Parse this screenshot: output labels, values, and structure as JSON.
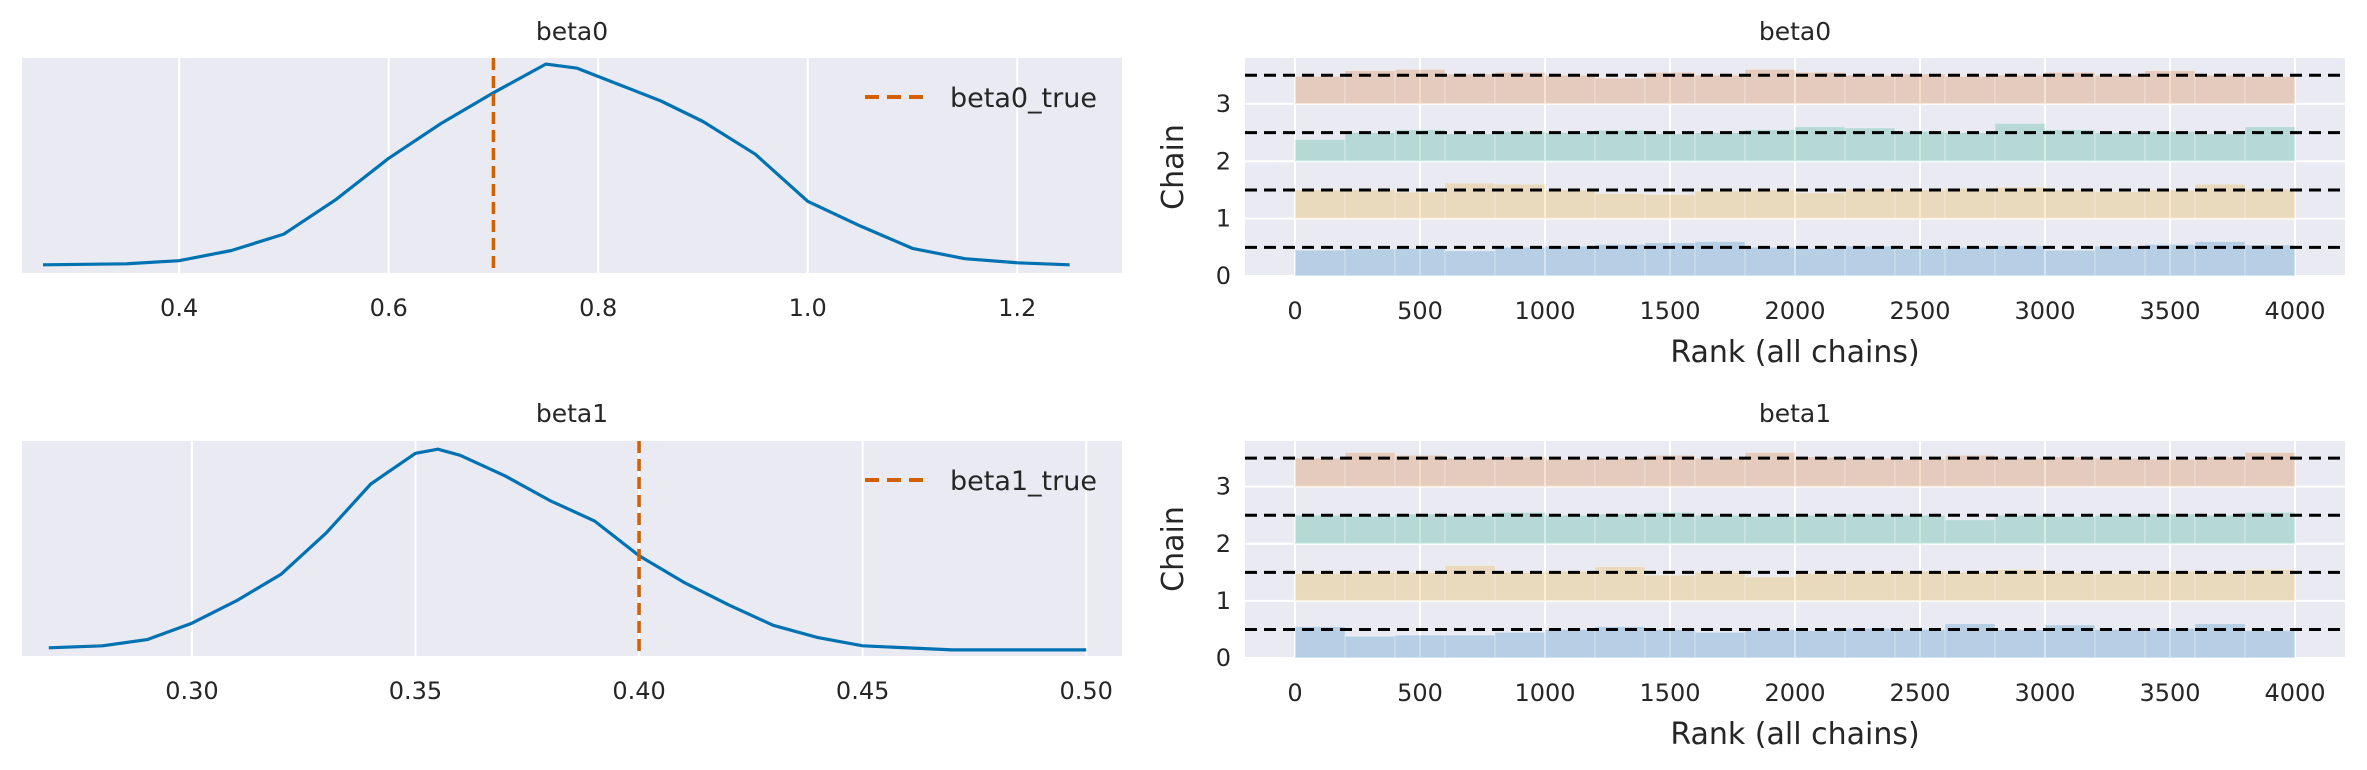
{
  "chart_data": [
    {
      "type": "line",
      "title": "beta0",
      "xlim": [
        0.25,
        1.3
      ],
      "xticks": [
        0.4,
        0.6,
        0.8,
        1.0,
        1.2
      ],
      "xtick_labels": [
        "0.4",
        "0.6",
        "0.8",
        "1.0",
        "1.2"
      ],
      "ylim": [
        0,
        1.05
      ],
      "y_ticks_shown": false,
      "grid": "vertical",
      "legend_position": "top-right",
      "series": [
        {
          "kind": "kde",
          "color": "#0072b2",
          "x": [
            0.27,
            0.35,
            0.4,
            0.45,
            0.5,
            0.55,
            0.6,
            0.65,
            0.7,
            0.75,
            0.78,
            0.82,
            0.86,
            0.9,
            0.95,
            1.0,
            1.05,
            1.1,
            1.15,
            1.2,
            1.25
          ],
          "y": [
            0.04,
            0.045,
            0.06,
            0.11,
            0.19,
            0.36,
            0.56,
            0.73,
            0.88,
            1.02,
            1.0,
            0.92,
            0.84,
            0.74,
            0.58,
            0.35,
            0.23,
            0.12,
            0.07,
            0.05,
            0.04
          ]
        },
        {
          "kind": "vline",
          "name": "beta0_true",
          "x": 0.7,
          "color": "#d55e00",
          "dash": true
        }
      ]
    },
    {
      "type": "bar",
      "title": "beta0",
      "xlabel": "Rank (all chains)",
      "ylabel": "Chain",
      "xlim": [
        -200,
        4200
      ],
      "xticks": [
        0,
        500,
        1000,
        1500,
        2000,
        2500,
        3000,
        3500,
        4000
      ],
      "xtick_labels": [
        "0",
        "500",
        "1000",
        "1500",
        "2000",
        "2500",
        "3000",
        "3500",
        "4000"
      ],
      "ylim": [
        0,
        3.8
      ],
      "yticks": [
        0,
        1,
        2,
        3
      ],
      "ytick_labels": [
        "0",
        "1",
        "2",
        "3"
      ],
      "grid": "both",
      "bin_width": 200,
      "reference_lines": [
        0.5,
        1.5,
        2.5,
        3.5
      ],
      "series": [
        {
          "name": "0",
          "offset": 0,
          "color": "#0072b2",
          "values": [
            0.45,
            0.47,
            0.48,
            0.44,
            0.5,
            0.52,
            0.55,
            0.58,
            0.6,
            0.5,
            0.48,
            0.52,
            0.47,
            0.5,
            0.53,
            0.45,
            0.52,
            0.55,
            0.6,
            0.54
          ]
        },
        {
          "name": "1",
          "offset": 1,
          "color": "#e69f00",
          "values": [
            0.5,
            0.5,
            0.46,
            0.62,
            0.6,
            0.5,
            0.44,
            0.42,
            0.48,
            0.5,
            0.45,
            0.52,
            0.5,
            0.53,
            0.55,
            0.5,
            0.47,
            0.5,
            0.6,
            0.52
          ]
        },
        {
          "name": "2",
          "offset": 2,
          "color": "#009e73",
          "values": [
            0.38,
            0.5,
            0.55,
            0.48,
            0.52,
            0.5,
            0.54,
            0.48,
            0.5,
            0.55,
            0.6,
            0.58,
            0.52,
            0.5,
            0.66,
            0.55,
            0.5,
            0.52,
            0.48,
            0.6
          ]
        },
        {
          "name": "3",
          "offset": 3,
          "color": "#d55e00",
          "values": [
            0.48,
            0.58,
            0.6,
            0.52,
            0.55,
            0.5,
            0.45,
            0.55,
            0.5,
            0.6,
            0.55,
            0.5,
            0.52,
            0.48,
            0.5,
            0.55,
            0.5,
            0.58,
            0.5,
            0.48
          ]
        }
      ]
    },
    {
      "type": "line",
      "title": "beta1",
      "xlim": [
        0.262,
        0.508
      ],
      "xticks": [
        0.3,
        0.35,
        0.4,
        0.45,
        0.5
      ],
      "xtick_labels": [
        "0.30",
        "0.35",
        "0.40",
        "0.45",
        "0.50"
      ],
      "ylim": [
        0,
        1.05
      ],
      "y_ticks_shown": false,
      "grid": "vertical",
      "legend_position": "top-right",
      "series": [
        {
          "kind": "kde",
          "color": "#0072b2",
          "x": [
            0.268,
            0.28,
            0.29,
            0.3,
            0.31,
            0.32,
            0.33,
            0.34,
            0.35,
            0.355,
            0.36,
            0.37,
            0.38,
            0.39,
            0.4,
            0.41,
            0.42,
            0.43,
            0.44,
            0.45,
            0.47,
            0.5
          ],
          "y": [
            0.04,
            0.05,
            0.08,
            0.16,
            0.27,
            0.4,
            0.6,
            0.84,
            0.99,
            1.01,
            0.98,
            0.88,
            0.76,
            0.66,
            0.49,
            0.36,
            0.25,
            0.15,
            0.09,
            0.05,
            0.03,
            0.03
          ]
        },
        {
          "kind": "vline",
          "name": "beta1_true",
          "x": 0.4,
          "color": "#d55e00",
          "dash": true
        }
      ]
    },
    {
      "type": "bar",
      "title": "beta1",
      "xlabel": "Rank (all chains)",
      "ylabel": "Chain",
      "xlim": [
        -200,
        4200
      ],
      "xticks": [
        0,
        500,
        1000,
        1500,
        2000,
        2500,
        3000,
        3500,
        4000
      ],
      "xtick_labels": [
        "0",
        "500",
        "1000",
        "1500",
        "2000",
        "2500",
        "3000",
        "3500",
        "4000"
      ],
      "ylim": [
        0,
        3.8
      ],
      "yticks": [
        0,
        1,
        2,
        3
      ],
      "ytick_labels": [
        "0",
        "1",
        "2",
        "3"
      ],
      "grid": "both",
      "bin_width": 200,
      "reference_lines": [
        0.5,
        1.5,
        2.5,
        3.5
      ],
      "series": [
        {
          "name": "0",
          "offset": 0,
          "color": "#0072b2",
          "values": [
            0.55,
            0.38,
            0.4,
            0.4,
            0.45,
            0.5,
            0.55,
            0.5,
            0.45,
            0.5,
            0.48,
            0.52,
            0.5,
            0.6,
            0.5,
            0.58,
            0.5,
            0.52,
            0.6,
            0.48
          ]
        },
        {
          "name": "1",
          "offset": 1,
          "color": "#e69f00",
          "values": [
            0.48,
            0.5,
            0.5,
            0.62,
            0.5,
            0.52,
            0.6,
            0.45,
            0.5,
            0.42,
            0.48,
            0.5,
            0.52,
            0.5,
            0.55,
            0.5,
            0.48,
            0.52,
            0.5,
            0.55
          ]
        },
        {
          "name": "2",
          "offset": 2,
          "color": "#009e73",
          "values": [
            0.5,
            0.48,
            0.52,
            0.5,
            0.55,
            0.5,
            0.52,
            0.55,
            0.5,
            0.48,
            0.5,
            0.52,
            0.5,
            0.42,
            0.5,
            0.48,
            0.5,
            0.52,
            0.5,
            0.55
          ]
        },
        {
          "name": "3",
          "offset": 3,
          "color": "#d55e00",
          "values": [
            0.5,
            0.6,
            0.55,
            0.5,
            0.52,
            0.48,
            0.5,
            0.55,
            0.5,
            0.6,
            0.52,
            0.5,
            0.48,
            0.55,
            0.5,
            0.52,
            0.5,
            0.48,
            0.52,
            0.6
          ]
        }
      ]
    }
  ]
}
